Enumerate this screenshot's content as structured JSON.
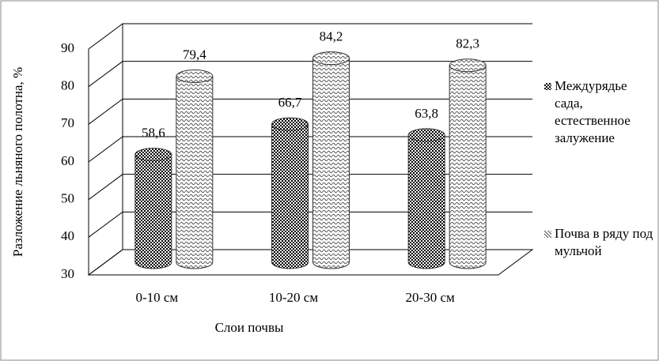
{
  "chart_data": {
    "type": "bar3d",
    "y_label": "Разложение льняного полотна, %",
    "x_label": "Слои почвы",
    "categories": [
      "0-10 см",
      "10-20 см",
      "20-30 см"
    ],
    "series": [
      {
        "name": "Междурядье сада, естественное залужение",
        "color": "#000000",
        "values": [
          58.6,
          66.7,
          63.8
        ],
        "value_labels": [
          "58,6",
          "66,7",
          "63,8"
        ]
      },
      {
        "name": "Почва в ряду под мульчой",
        "color": "#555555",
        "values": [
          79.4,
          84.2,
          82.3
        ],
        "value_labels": [
          "79,4",
          "84,2",
          "82,3"
        ]
      }
    ],
    "ylim": [
      30,
      90
    ],
    "yticks": [
      30,
      40,
      50,
      60,
      70,
      80,
      90
    ],
    "grid": true
  }
}
